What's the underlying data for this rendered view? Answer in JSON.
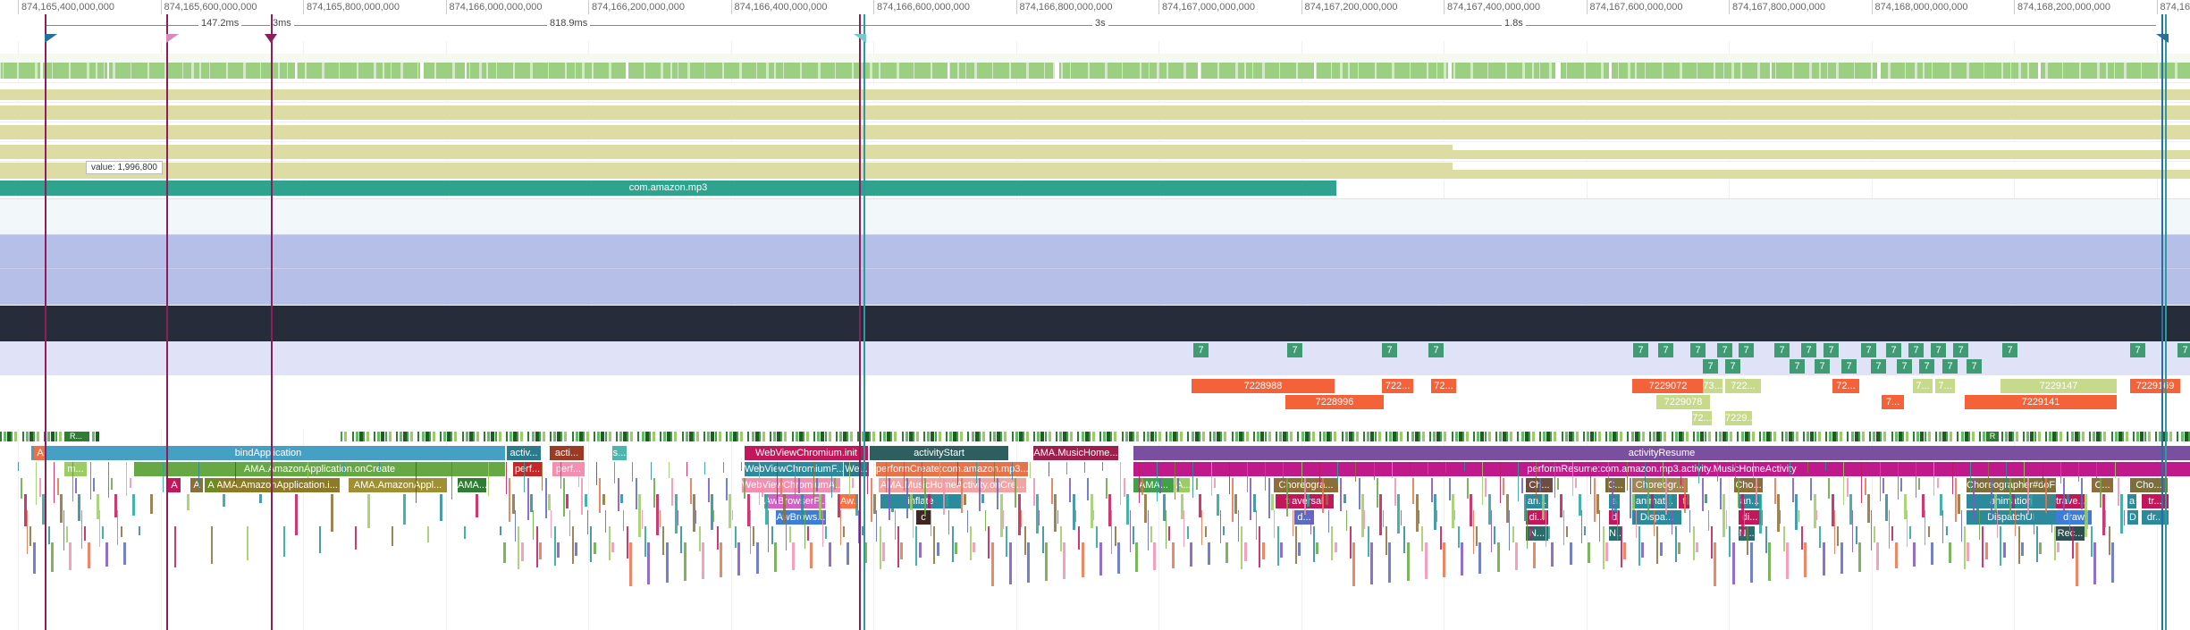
{
  "timeline": {
    "ticks": [
      "874,165,400,000,000",
      "874,165,600,000,000",
      "874,165,800,000,000",
      "874,166,000,000,000",
      "874,166,200,000,000",
      "874,166,400,000,000",
      "874,166,600,000,000",
      "874,166,800,000,000",
      "874,167,000,000,000",
      "874,167,200,000,000",
      "874,167,400,000,000",
      "874,167,600,000,000",
      "874,167,800,000,000",
      "874,168,000,000,000",
      "874,168,200,000,000",
      "874,168,..."
    ],
    "intervals": [
      "147.2ms",
      "3ms",
      "818.9ms",
      "3s",
      "1.8s"
    ]
  },
  "counter_tooltip": "value: 1,996,800",
  "process_slice": "com.amazon.mp3",
  "thread_badges": [
    "7",
    "7",
    "7",
    "7",
    "7",
    "7",
    "7",
    "7",
    "7",
    "7",
    "7",
    "7",
    "7",
    "7",
    "7",
    "7",
    "7",
    "7",
    "7",
    "7",
    "7",
    "7",
    "7",
    "7",
    "7",
    "7",
    "7",
    "7",
    "7",
    "7"
  ],
  "id_slices": [
    "7228988",
    "7228996",
    "722...",
    "72...",
    "7229072",
    "7229078",
    "73...",
    "722...",
    "72...",
    "7229...",
    "72...",
    "7...",
    "7...",
    "7...",
    "7229147",
    "7229141",
    "7229169"
  ],
  "main_thread": {
    "depth0": [
      "bindApplication",
      "activ...",
      "acti...",
      "WebViewChromium.init",
      "activityStart",
      "AMA.MusicHome...",
      "activityResume"
    ],
    "depth1": [
      "AMA.AmazonApplication.onCreate",
      "perf...",
      "perf...",
      "WebViewChromiumF...",
      "We...",
      "performCreate:com.amazon.mp3...",
      "performResume:com.amazon.mp3.activity.MusicHomeActivity"
    ],
    "depth2": [
      "AMA.AmazonApplication.i...",
      "AMA.AmazonAppl...",
      "AMA...",
      "WebViewChromiumA...",
      "AMA.MusicHomeActivity.onCre...",
      "AMA...",
      "A...",
      "Choreogra...",
      "Ch...",
      "Choreogr...",
      "C...",
      "Cho...",
      "Choreographer#doFrame 7...",
      "C...",
      "Cho..."
    ],
    "depth3": [
      "AwBrowserP...",
      "Aw...",
      "inflate",
      "traversal",
      "an...",
      "a",
      "animat...",
      "t",
      "an...",
      "animation",
      "trave...",
      "a",
      "tr..."
    ],
    "depth4": [
      "AwBrows...",
      "c",
      "d...",
      "di...",
      "d",
      "Dispa...",
      "di...",
      "DispatchUI",
      "draw",
      "D",
      "dr..."
    ],
    "depth5": [
      "N...",
      "N...",
      "N...",
      "Rec..."
    ]
  },
  "small_labels": [
    "A",
    "m...",
    "A",
    "A",
    "A",
    "s...",
    "R...",
    "R"
  ]
}
